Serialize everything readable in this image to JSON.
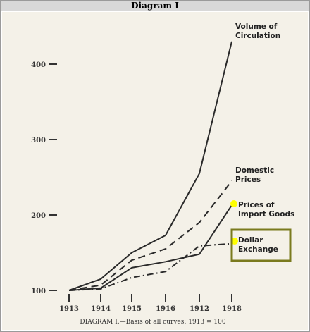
{
  "title": "Diagram I",
  "chart_data": {
    "type": "line",
    "categories": [
      "1913",
      "1914",
      "1915",
      "1916",
      "1912",
      "1918"
    ],
    "yticks": [
      100,
      200,
      300,
      400
    ],
    "ylim": [
      100,
      455
    ],
    "caption": "DIAGRAM I.—Basis of all curves: 1913 = 100",
    "grid": false,
    "series": [
      {
        "name": "Volume of Circulation",
        "label_lines": [
          "Volume of",
          "Circulation"
        ],
        "values": [
          100,
          115,
          150,
          173,
          255,
          430
        ],
        "style": "solid"
      },
      {
        "name": "Domestic Prices",
        "label_lines": [
          "Domestic",
          "Prices"
        ],
        "values": [
          100,
          107,
          140,
          155,
          190,
          245
        ],
        "style": "dashed"
      },
      {
        "name": "Prices of Import Goods",
        "label_lines": [
          "Prices of",
          "Import Goods"
        ],
        "values": [
          100,
          103,
          130,
          138,
          148,
          213
        ],
        "style": "solid"
      },
      {
        "name": "Dollar Exchange",
        "label_lines": [
          "Dollar",
          "Exchange"
        ],
        "values": [
          100,
          102,
          117,
          125,
          159,
          162
        ],
        "style": "dashdot"
      }
    ],
    "annotations": {
      "highlight_color": "#ffff00",
      "box_color": "#7a7a1e"
    }
  }
}
